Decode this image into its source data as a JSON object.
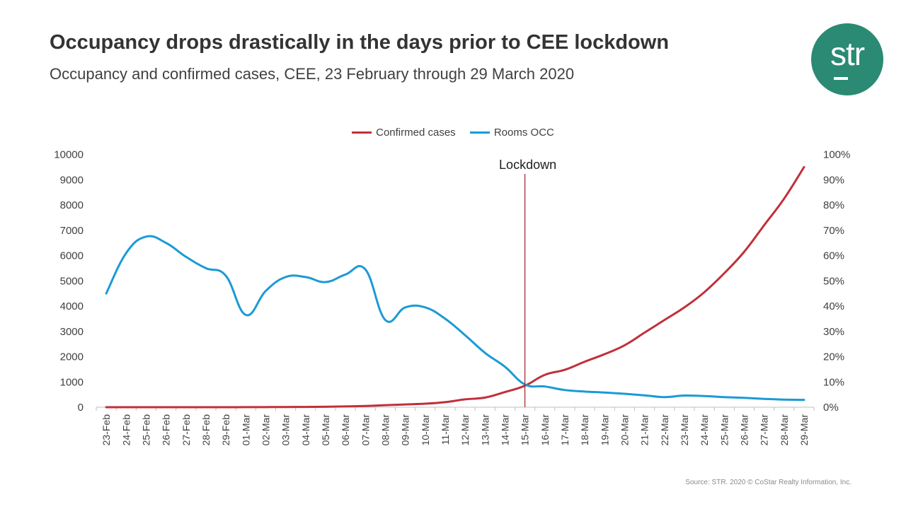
{
  "header": {
    "title": "Occupancy drops drastically in the days prior to CEE lockdown",
    "subtitle": "Occupancy and confirmed cases, CEE, 23 February through 29 March 2020"
  },
  "logo": {
    "text": "str",
    "color": "#2a8a74"
  },
  "footer": {
    "source": "Source: STR. 2020 © CoStar Realty Information, Inc."
  },
  "chart_data": {
    "type": "line",
    "title": "Occupancy drops drastically in the days prior to CEE lockdown",
    "subtitle": "Occupancy and confirmed cases, CEE, 23 February through 29 March 2020",
    "legend_position": "top-center",
    "categories": [
      "23-Feb",
      "24-Feb",
      "25-Feb",
      "26-Feb",
      "27-Feb",
      "28-Feb",
      "29-Feb",
      "01-Mar",
      "02-Mar",
      "03-Mar",
      "04-Mar",
      "05-Mar",
      "06-Mar",
      "07-Mar",
      "08-Mar",
      "09-Mar",
      "10-Mar",
      "11-Mar",
      "12-Mar",
      "13-Mar",
      "14-Mar",
      "15-Mar",
      "16-Mar",
      "17-Mar",
      "18-Mar",
      "19-Mar",
      "20-Mar",
      "21-Mar",
      "22-Mar",
      "23-Mar",
      "24-Mar",
      "25-Mar",
      "26-Mar",
      "27-Mar",
      "28-Mar",
      "29-Mar"
    ],
    "y_left": {
      "ticks": [
        "0",
        "1000",
        "2000",
        "3000",
        "4000",
        "5000",
        "6000",
        "7000",
        "8000",
        "9000",
        "10000"
      ],
      "range": [
        0,
        10000
      ]
    },
    "y_right": {
      "ticks": [
        "0%",
        "10%",
        "20%",
        "30%",
        "40%",
        "50%",
        "60%",
        "70%",
        "80%",
        "90%",
        "100%"
      ],
      "range": [
        0,
        100
      ]
    },
    "series": [
      {
        "name": "Confirmed cases",
        "axis": "left",
        "color": "#c0303a",
        "values": [
          0,
          0,
          0,
          0,
          0,
          0,
          0,
          2,
          5,
          8,
          12,
          18,
          30,
          50,
          80,
          110,
          140,
          200,
          310,
          380,
          600,
          850,
          1280,
          1480,
          1800,
          2100,
          2450,
          2950,
          3450,
          3950,
          4550,
          5300,
          6150,
          7200,
          8250,
          9500
        ]
      },
      {
        "name": "Rooms OCC",
        "axis": "right",
        "color": "#1a9ad6",
        "values": [
          45,
          61,
          67.5,
          65,
          59.5,
          55,
          52,
          36.5,
          46,
          51.5,
          51.5,
          49.5,
          52.5,
          54.5,
          34.5,
          39.5,
          39.5,
          35,
          28.5,
          21.5,
          16,
          9,
          8.2,
          6.8,
          6.2,
          5.8,
          5.3,
          4.7,
          4,
          4.6,
          4.4,
          4,
          3.7,
          3.3,
          3,
          2.9
        ]
      }
    ],
    "annotations": [
      {
        "label": "Lockdown",
        "category": "15-Mar"
      }
    ]
  }
}
